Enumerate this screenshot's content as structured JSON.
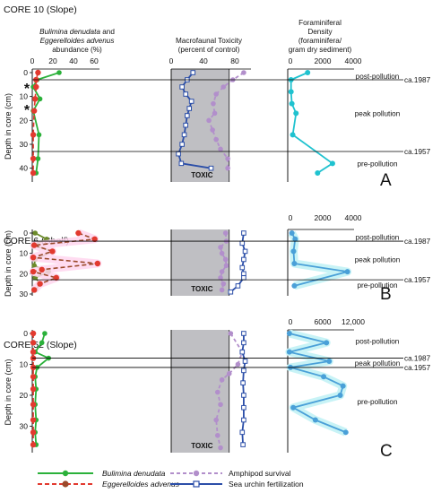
{
  "colors": {
    "green": "#2bb13a",
    "red": "#e23a2f",
    "brown": "#9b4a2b",
    "purple": "#b28fcb",
    "blue": "#2b4ea8",
    "cyan": "#1fc2cf",
    "steel": "#4aa0d8",
    "gray": "#bfbfc3",
    "pinkHalo": "#ffd6ee",
    "cyanHalo": "#c8f3f6"
  },
  "headers": {
    "col1_line1a": "Bulimina denudata",
    "col1_line1b": " and",
    "col1_line2a": "Eggerelloides advenus",
    "col1_line3": "abundance (%)",
    "col2_line1": "Macrofaunal Toxicity",
    "col2_line2": "(percent of control)",
    "col3_line1": "Foraminiferal",
    "col3_line2": "Density",
    "col3_line3": "(foraminifera/",
    "col3_line4": "gram dry sediment)"
  },
  "legend": {
    "bulimina": "Bulimina denudata",
    "eggerelloides": "Eggerelloides advenus",
    "amphipod": "Amphipod survival",
    "urchin": "Sea urchin fertilization"
  },
  "chart_data": [
    {
      "type": "line",
      "title": "CORE 10 (Slope)",
      "panel_letter": "A",
      "ylabel": "Depth in core (cm)",
      "ylim": [
        0,
        45
      ],
      "yticks": [
        "0",
        "10",
        "20",
        "30",
        "40"
      ],
      "asterisk_depths": [
        6,
        15
      ],
      "abundance": {
        "xlim": [
          0,
          70
        ],
        "xticks": [
          "0",
          "20",
          "40",
          "60"
        ],
        "series": [
          {
            "name": "Bulimina denudata",
            "points": [
              [
                28,
                0
              ],
              [
                5,
                3
              ],
              [
                1,
                6
              ],
              [
                8,
                11
              ],
              [
                1,
                16
              ],
              [
                7,
                26
              ],
              [
                6,
                36
              ],
              [
                4,
                42
              ]
            ]
          },
          {
            "name": "Eggerelloides advenus",
            "points": [
              [
                6,
                0
              ],
              [
                4,
                3
              ],
              [
                4,
                6
              ],
              [
                3,
                11
              ],
              [
                2,
                16
              ],
              [
                1,
                26
              ],
              [
                1,
                36
              ],
              [
                1,
                42
              ]
            ]
          }
        ]
      },
      "toxicity": {
        "xlim": [
          0,
          110
        ],
        "xticks": [
          "0",
          "40",
          "80"
        ],
        "gray_to": 80,
        "label": "TOXIC",
        "series": [
          {
            "name": "Amphipod survival",
            "points": [
              [
                100,
                0
              ],
              [
                85,
                3
              ],
              [
                72,
                6
              ],
              [
                62,
                9
              ],
              [
                58,
                13
              ],
              [
                60,
                17
              ],
              [
                52,
                20
              ],
              [
                57,
                24
              ],
              [
                62,
                28
              ],
              [
                68,
                32
              ],
              [
                78,
                36
              ],
              [
                78,
                40
              ]
            ]
          },
          {
            "name": "Sea urchin fertilization",
            "points": [
              [
                30,
                0
              ],
              [
                22,
                3
              ],
              [
                15,
                6
              ],
              [
                20,
                9
              ],
              [
                28,
                12
              ],
              [
                25,
                15
              ],
              [
                22,
                18
              ],
              [
                20,
                22
              ],
              [
                18,
                26
              ],
              [
                15,
                30
              ],
              [
                10,
                34
              ],
              [
                14,
                38
              ],
              [
                55,
                40
              ]
            ]
          }
        ]
      },
      "density": {
        "xlim": [
          0,
          4000
        ],
        "xticks": [
          "0",
          "2000",
          "4000"
        ],
        "series": [
          {
            "name": "Foraminiferal density",
            "points": [
              [
                1200,
                0
              ],
              [
                200,
                3
              ],
              [
                200,
                8
              ],
              [
                250,
                13
              ],
              [
                500,
                17
              ],
              [
                300,
                26
              ],
              [
                2700,
                38
              ],
              [
                1800,
                42
              ]
            ]
          }
        ]
      },
      "horizon_lines": [
        {
          "depth": 3,
          "label": "ca.1987"
        },
        {
          "depth": 33,
          "label": "ca.1957"
        }
      ],
      "zone_labels": [
        {
          "depth": 1.5,
          "text": "post-pollution"
        },
        {
          "depth": 17,
          "text": "peak pollution"
        },
        {
          "depth": 38,
          "text": "pre-pollution"
        }
      ]
    },
    {
      "type": "line",
      "title": "CORE 6 (Shelf)",
      "panel_letter": "B",
      "ylabel": "Depth in core (cm)",
      "ylim": [
        0,
        30
      ],
      "yticks": [
        "0",
        "10",
        "20",
        "30"
      ],
      "abundance": {
        "xlim": [
          0,
          70
        ],
        "xticks": [],
        "series": [
          {
            "name": "Bulimina denudata",
            "points": [
              [
                3,
                0
              ],
              [
                15,
                3
              ],
              [
                1,
                6
              ],
              [
                21,
                9
              ],
              [
                3,
                13
              ],
              [
                2,
                16
              ],
              [
                17,
                19
              ],
              [
                3,
                22
              ],
              [
                9,
                25
              ],
              [
                3,
                28
              ]
            ]
          },
          {
            "name": "Eggerelloides advenus",
            "points": [
              [
                48,
                0
              ],
              [
                65,
                3
              ],
              [
                2,
                6
              ],
              [
                21,
                9
              ],
              [
                1,
                12
              ],
              [
                68,
                15
              ],
              [
                10,
                18
              ],
              [
                1,
                19
              ],
              [
                25,
                22
              ],
              [
                8,
                25
              ],
              [
                2,
                28
              ]
            ]
          }
        ]
      },
      "toxicity": {
        "xlim": [
          0,
          110
        ],
        "xticks": [],
        "gray_to": 80,
        "label": "TOXIC",
        "series": [
          {
            "name": "Amphipod survival",
            "points": [
              [
                75,
                0
              ],
              [
                76,
                4
              ],
              [
                68,
                7
              ],
              [
                70,
                10
              ],
              [
                75,
                13
              ],
              [
                76,
                16
              ],
              [
                70,
                19
              ],
              [
                68,
                22
              ],
              [
                72,
                25
              ],
              [
                70,
                28
              ]
            ]
          },
          {
            "name": "Sea urchin fertilization",
            "points": [
              [
                100,
                0
              ],
              [
                98,
                5
              ],
              [
                102,
                9
              ],
              [
                100,
                13
              ],
              [
                98,
                17
              ],
              [
                100,
                20
              ],
              [
                100,
                22
              ],
              [
                92,
                26
              ],
              [
                82,
                29
              ]
            ]
          }
        ]
      },
      "density": {
        "xlim": [
          0,
          4000
        ],
        "xticks": [
          "0",
          "2000",
          "4000"
        ],
        "series": [
          {
            "name": "Foraminiferal density",
            "points": [
              [
                250,
                0
              ],
              [
                450,
                3
              ],
              [
                350,
                9
              ],
              [
                400,
                15
              ],
              [
                3600,
                19
              ],
              [
                400,
                26
              ]
            ]
          }
        ]
      },
      "horizon_lines": [
        {
          "depth": 4,
          "label": "ca.1987"
        },
        {
          "depth": 23,
          "label": "ca.1957"
        }
      ],
      "zone_labels": [
        {
          "depth": 2,
          "text": "post-pollution"
        },
        {
          "depth": 13,
          "text": "peak pollution"
        },
        {
          "depth": 25.5,
          "text": "pre-pollution"
        }
      ]
    },
    {
      "type": "line",
      "title": "CORE 52 (Slope)",
      "panel_letter": "C",
      "ylabel": "Depth in core (cm)",
      "ylim": [
        0,
        38
      ],
      "yticks": [
        "0",
        "10",
        "20",
        "30"
      ],
      "abundance": {
        "xlim": [
          0,
          70
        ],
        "xticks": [],
        "series": [
          {
            "name": "Bulimina denudata",
            "points": [
              [
                13,
                0
              ],
              [
                10,
                3
              ],
              [
                3,
                6
              ],
              [
                17,
                8
              ],
              [
                5,
                11
              ],
              [
                3,
                14
              ],
              [
                4,
                18
              ],
              [
                3,
                23
              ],
              [
                4,
                28
              ],
              [
                3,
                32
              ],
              [
                4,
                36
              ]
            ]
          },
          {
            "name": "Eggerelloides advenus",
            "points": [
              [
                1,
                0
              ],
              [
                1,
                3
              ],
              [
                1,
                6
              ],
              [
                1,
                8
              ],
              [
                1,
                11
              ],
              [
                1,
                14
              ],
              [
                1,
                18
              ],
              [
                1,
                23
              ],
              [
                1,
                28
              ],
              [
                1,
                32
              ],
              [
                1,
                36
              ]
            ]
          }
        ]
      },
      "toxicity": {
        "xlim": [
          0,
          110
        ],
        "xticks": [],
        "gray_to": 80,
        "label": "TOXIC",
        "series": [
          {
            "name": "Amphipod survival",
            "points": [
              [
                82,
                0
              ],
              [
                98,
                6
              ],
              [
                92,
                10
              ],
              [
                80,
                13
              ],
              [
                70,
                15
              ],
              [
                64,
                19
              ],
              [
                68,
                23
              ],
              [
                62,
                28
              ],
              [
                64,
                33
              ],
              [
                68,
                37
              ]
            ]
          },
          {
            "name": "Sea urchin fertilization",
            "points": [
              [
                100,
                0
              ],
              [
                100,
                3
              ],
              [
                98,
                6
              ],
              [
                102,
                9
              ],
              [
                100,
                12
              ],
              [
                99,
                16
              ],
              [
                100,
                20
              ],
              [
                100,
                24
              ],
              [
                100,
                28
              ],
              [
                98,
                32
              ],
              [
                99,
                36
              ]
            ]
          }
        ]
      },
      "density": {
        "xlim": [
          0,
          12000
        ],
        "xticks": [
          "0",
          "6000",
          "12,000"
        ],
        "series": [
          {
            "name": "Foraminiferal density",
            "points": [
              [
                300,
                0
              ],
              [
                7000,
                3
              ],
              [
                300,
                6
              ],
              [
                7500,
                9
              ],
              [
                500,
                11
              ],
              [
                6500,
                14
              ],
              [
                10000,
                17
              ],
              [
                9500,
                20
              ],
              [
                1000,
                24
              ],
              [
                5000,
                28
              ],
              [
                10500,
                32
              ]
            ]
          }
        ]
      },
      "horizon_lines": [
        {
          "depth": 8,
          "label": "ca.1987"
        },
        {
          "depth": 11,
          "label": "ca.1957"
        }
      ],
      "zone_labels": [
        {
          "depth": 2.5,
          "text": "post-pollution"
        },
        {
          "depth": 9.5,
          "text": "peak pollution"
        },
        {
          "depth": 22,
          "text": "pre-pollution"
        }
      ]
    }
  ]
}
